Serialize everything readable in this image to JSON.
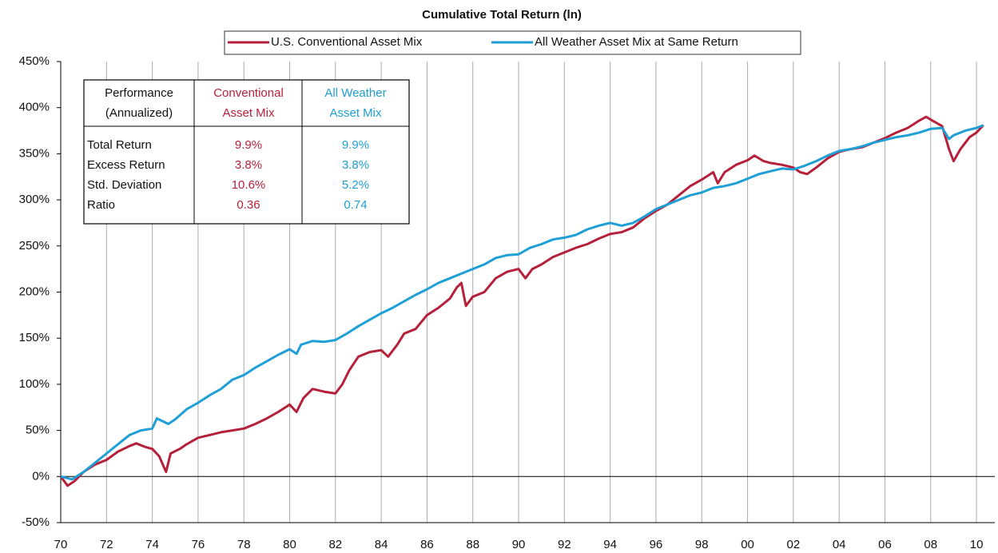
{
  "chart_data": {
    "type": "line",
    "title": "Cumulative Total Return (ln)",
    "series": [
      {
        "name": "U.S. Conventional Asset Mix",
        "color": "#b5213b",
        "x": [
          1970,
          1970.3,
          1970.6,
          1971,
          1971.5,
          1972,
          1972.5,
          1973,
          1973.3,
          1973.7,
          1974,
          1974.3,
          1974.6,
          1974.8,
          1975.2,
          1975.5,
          1976,
          1976.5,
          1977,
          1977.5,
          1978,
          1978.5,
          1979,
          1979.5,
          1980,
          1980.3,
          1980.6,
          1981,
          1981.5,
          1982,
          1982.3,
          1982.6,
          1983,
          1983.5,
          1984,
          1984.3,
          1984.7,
          1985,
          1985.5,
          1986,
          1986.5,
          1987,
          1987.3,
          1987.5,
          1987.7,
          1988,
          1988.5,
          1989,
          1989.5,
          1990,
          1990.3,
          1990.6,
          1991,
          1991.5,
          1992,
          1992.5,
          1993,
          1993.5,
          1994,
          1994.5,
          1995,
          1995.5,
          1996,
          1996.5,
          1997,
          1997.5,
          1998,
          1998.5,
          1998.7,
          1999,
          1999.5,
          2000,
          2000.3,
          2000.7,
          2001,
          2001.5,
          2002,
          2002.3,
          2002.6,
          2003,
          2003.5,
          2004,
          2004.5,
          2005,
          2005.5,
          2006,
          2006.5,
          2007,
          2007.5,
          2007.8,
          2008,
          2008.5,
          2008.8,
          2009,
          2009.3,
          2009.7,
          2010,
          2010.3
        ],
        "values": [
          0,
          -10,
          -5,
          5,
          13,
          18,
          27,
          33,
          36,
          32,
          30,
          22,
          5,
          25,
          30,
          35,
          42,
          45,
          48,
          50,
          52,
          57,
          63,
          70,
          78,
          70,
          85,
          95,
          92,
          90,
          100,
          115,
          130,
          135,
          137,
          130,
          143,
          155,
          160,
          175,
          183,
          193,
          205,
          210,
          185,
          195,
          200,
          215,
          222,
          225,
          215,
          225,
          230,
          238,
          243,
          248,
          252,
          258,
          263,
          265,
          270,
          280,
          288,
          295,
          305,
          315,
          322,
          330,
          318,
          330,
          338,
          343,
          348,
          342,
          340,
          338,
          335,
          330,
          328,
          335,
          345,
          352,
          355,
          357,
          362,
          367,
          373,
          378,
          386,
          390,
          387,
          380,
          355,
          342,
          355,
          368,
          373,
          381
        ]
      },
      {
        "name": "All Weather Asset Mix at Same Return",
        "color": "#1f9fd5",
        "x": [
          1970,
          1970.5,
          1971,
          1971.5,
          1972,
          1972.5,
          1973,
          1973.5,
          1974,
          1974.2,
          1974.7,
          1975,
          1975.5,
          1976,
          1976.5,
          1977,
          1977.5,
          1978,
          1978.5,
          1979,
          1979.5,
          1980,
          1980.3,
          1980.5,
          1981,
          1981.5,
          1982,
          1982.5,
          1983,
          1983.5,
          1984,
          1984.5,
          1985,
          1985.5,
          1986,
          1986.5,
          1987,
          1987.5,
          1988,
          1988.5,
          1989,
          1989.5,
          1990,
          1990.5,
          1991,
          1991.5,
          1992,
          1992.5,
          1993,
          1993.5,
          1994,
          1994.5,
          1995,
          1995.5,
          1996,
          1996.5,
          1997,
          1997.5,
          1998,
          1998.5,
          1999,
          1999.5,
          2000,
          2000.5,
          2001,
          2001.5,
          2002,
          2002.5,
          2003,
          2003.5,
          2004,
          2004.5,
          2005,
          2005.5,
          2006,
          2006.5,
          2007,
          2007.5,
          2008,
          2008.5,
          2008.8,
          2009,
          2009.5,
          2010,
          2010.3
        ],
        "values": [
          0,
          -3,
          5,
          15,
          25,
          35,
          45,
          50,
          52,
          63,
          57,
          62,
          73,
          80,
          88,
          95,
          105,
          110,
          118,
          125,
          132,
          138,
          133,
          143,
          147,
          146,
          148,
          155,
          163,
          170,
          177,
          183,
          190,
          197,
          203,
          210,
          215,
          220,
          225,
          230,
          237,
          240,
          241,
          248,
          252,
          257,
          259,
          262,
          268,
          272,
          275,
          272,
          275,
          282,
          290,
          295,
          300,
          305,
          308,
          313,
          315,
          318,
          323,
          328,
          331,
          334,
          333,
          337,
          342,
          348,
          353,
          355,
          358,
          362,
          365,
          368,
          370,
          373,
          377,
          378,
          366,
          370,
          375,
          378,
          381
        ]
      }
    ],
    "xlim": [
      1970,
      2010.8
    ],
    "xticks": [
      {
        "value": 1970,
        "label": "70"
      },
      {
        "value": 1972,
        "label": "72"
      },
      {
        "value": 1974,
        "label": "74"
      },
      {
        "value": 1976,
        "label": "76"
      },
      {
        "value": 1978,
        "label": "78"
      },
      {
        "value": 1980,
        "label": "80"
      },
      {
        "value": 1982,
        "label": "82"
      },
      {
        "value": 1984,
        "label": "84"
      },
      {
        "value": 1986,
        "label": "86"
      },
      {
        "value": 1988,
        "label": "88"
      },
      {
        "value": 1990,
        "label": "90"
      },
      {
        "value": 1992,
        "label": "92"
      },
      {
        "value": 1994,
        "label": "94"
      },
      {
        "value": 1996,
        "label": "96"
      },
      {
        "value": 1998,
        "label": "98"
      },
      {
        "value": 2000,
        "label": "00"
      },
      {
        "value": 2002,
        "label": "02"
      },
      {
        "value": 2004,
        "label": "04"
      },
      {
        "value": 2006,
        "label": "06"
      },
      {
        "value": 2008,
        "label": "08"
      },
      {
        "value": 2010,
        "label": "10"
      }
    ],
    "ylim": [
      -50,
      450
    ],
    "yticks": [
      {
        "value": -50,
        "label": "-50%"
      },
      {
        "value": 0,
        "label": "0%"
      },
      {
        "value": 50,
        "label": "50%"
      },
      {
        "value": 100,
        "label": "100%"
      },
      {
        "value": 150,
        "label": "150%"
      },
      {
        "value": 200,
        "label": "200%"
      },
      {
        "value": 250,
        "label": "250%"
      },
      {
        "value": 300,
        "label": "300%"
      },
      {
        "value": 350,
        "label": "350%"
      },
      {
        "value": 400,
        "label": "400%"
      },
      {
        "value": 450,
        "label": "450%"
      }
    ],
    "grid": true,
    "legend": "top"
  },
  "table": {
    "header": [
      [
        "Performance",
        "(Annualized)"
      ],
      [
        "Conventional",
        "Asset Mix"
      ],
      [
        "All Weather",
        "Asset Mix"
      ]
    ],
    "rows": [
      [
        "Total Return",
        "9.9%",
        "9.9%"
      ],
      [
        "Excess Return",
        "3.8%",
        "3.8%"
      ],
      [
        "Std. Deviation",
        "10.6%",
        "5.2%"
      ],
      [
        "Ratio",
        "0.36",
        "0.74"
      ]
    ]
  }
}
